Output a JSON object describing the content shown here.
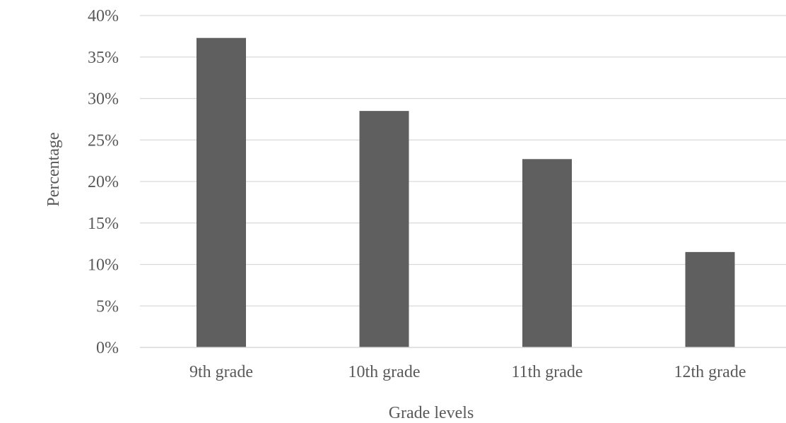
{
  "chart_data": {
    "type": "bar",
    "title": "",
    "categories": [
      "9th grade",
      "10th grade",
      "11th grade",
      "12th grade"
    ],
    "values": [
      37.3,
      28.5,
      22.7,
      11.5
    ],
    "xlabel": "Grade levels",
    "ylabel": "Percentage",
    "ylim": [
      0,
      40
    ],
    "yticks": [
      "0%",
      "5%",
      "10%",
      "15%",
      "20%",
      "25%",
      "30%",
      "35%",
      "40%"
    ],
    "grid": true,
    "legend": "none",
    "bar_color": "#5f5f5f",
    "grid_color": "#d9d9d9",
    "text_color": "#595959"
  }
}
